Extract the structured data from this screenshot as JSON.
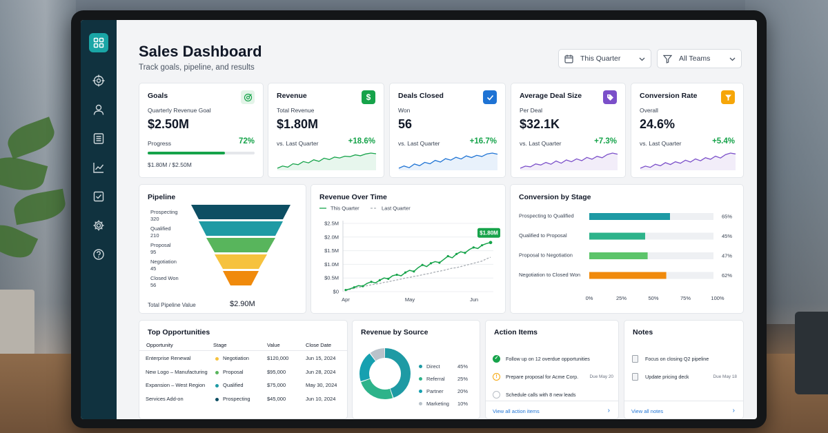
{
  "header": {
    "title": "Sales Dashboard",
    "subtitle": "Track goals, pipeline, and results",
    "period_select": {
      "value": "This Quarter",
      "icon": "calendar-icon"
    },
    "team_select": {
      "value": "All Teams",
      "icon": "filter-icon"
    }
  },
  "sidebar": {
    "items": [
      "grid-icon",
      "target-icon",
      "user-icon",
      "list-icon",
      "trend-icon",
      "check-square-icon",
      "gear-icon",
      "help-icon"
    ]
  },
  "kpis": {
    "goals": {
      "title": "Goals",
      "label": "Quarterly Revenue Goal",
      "value": "$2.50M",
      "progress_label": "Progress",
      "progress_pct": "72%",
      "progress_value": 0.72,
      "footer": "$1.80M / $2.50M",
      "icon": "target-check-icon",
      "color": "#16a34a"
    },
    "revenue": {
      "title": "Revenue",
      "label": "Total Revenue",
      "value": "$1.80M",
      "compare": "vs. Last Quarter",
      "change": "+18.6%",
      "icon": "dollar-icon",
      "color": "#16a34a",
      "spark": [
        3,
        4,
        3.5,
        5,
        4.6,
        6,
        5.4,
        6.8,
        6.1,
        7.5,
        6.9,
        8,
        7.6,
        8.4,
        8.2,
        9,
        8.6,
        9.4,
        9.8,
        9.5
      ]
    },
    "deals": {
      "title": "Deals Closed",
      "label": "Won",
      "value": "56",
      "compare": "vs. Last Quarter",
      "change": "+16.7%",
      "icon": "checkmark-icon",
      "color": "#1e73d4",
      "spark": [
        3,
        3.8,
        3.2,
        4.5,
        3.9,
        5.1,
        4.6,
        5.8,
        5.2,
        6.4,
        5.9,
        6.9,
        6.3,
        7.4,
        6.8,
        7.6,
        7.2,
        8.1,
        8.4,
        8
      ]
    },
    "avg_deal": {
      "title": "Average Deal Size",
      "label": "Per Deal",
      "value": "$32.1K",
      "compare": "vs. Last Quarter",
      "change": "+7.3%",
      "icon": "tag-icon",
      "color": "#7b4fc9",
      "spark": [
        3,
        3.6,
        3.4,
        4.2,
        3.9,
        4.6,
        4.1,
        5,
        4.4,
        5.3,
        4.8,
        5.6,
        5.1,
        6,
        5.5,
        6.3,
        5.9,
        6.8,
        7.2,
        6.9
      ]
    },
    "conversion": {
      "title": "Conversion Rate",
      "label": "Overall",
      "value": "24.6%",
      "compare": "vs. Last Quarter",
      "change": "+5.4%",
      "icon": "funnel-icon",
      "color": "#7b4fc9",
      "spark": [
        3,
        3.7,
        3.3,
        4.3,
        3.8,
        4.8,
        4.2,
        5.1,
        4.6,
        5.6,
        5,
        6,
        5.4,
        6.4,
        5.9,
        6.9,
        6.3,
        7.4,
        7.9,
        7.6
      ]
    }
  },
  "pipeline": {
    "title": "Pipeline",
    "stages": [
      {
        "name": "Prospecting",
        "count": "320",
        "color": "#0d4e63"
      },
      {
        "name": "Qualified",
        "count": "210",
        "color": "#1e9aa4"
      },
      {
        "name": "Proposal",
        "count": "95",
        "color": "#58b55c"
      },
      {
        "name": "Negotiation",
        "count": "45",
        "color": "#f6c23e"
      },
      {
        "name": "Closed Won",
        "count": "56",
        "color": "#f08a0c"
      }
    ],
    "total_label": "Total Pipeline Value",
    "total_value": "$2.90M"
  },
  "chart_data": {
    "type": "line",
    "title": "Revenue Over Time",
    "series": [
      {
        "name": "This Quarter",
        "color": "#16a34a",
        "style": "solid",
        "values": [
          0.06,
          0.1,
          0.16,
          0.22,
          0.2,
          0.3,
          0.36,
          0.32,
          0.42,
          0.5,
          0.47,
          0.58,
          0.62,
          0.58,
          0.7,
          0.78,
          0.74,
          0.88,
          0.98,
          0.92,
          1.04,
          1.1,
          1.06,
          1.18,
          1.3,
          1.24,
          1.38,
          1.46,
          1.42,
          1.54,
          1.62,
          1.58,
          1.7,
          1.76,
          1.8
        ]
      },
      {
        "name": "Last Quarter",
        "color": "#a8adb3",
        "style": "dashed",
        "values": [
          0.04,
          0.08,
          0.12,
          0.16,
          0.18,
          0.22,
          0.25,
          0.28,
          0.3,
          0.34,
          0.36,
          0.4,
          0.43,
          0.46,
          0.5,
          0.52,
          0.56,
          0.58,
          0.62,
          0.65,
          0.68,
          0.72,
          0.75,
          0.78,
          0.82,
          0.86,
          0.88,
          0.92,
          0.96,
          1,
          1.04,
          1.08,
          1.12,
          1.2,
          1.26
        ]
      }
    ],
    "yticks": [
      "$0",
      "$0.5M",
      "$1.0M",
      "$1.5M",
      "$2.0M",
      "$2.5M"
    ],
    "ylim": [
      0,
      2.5
    ],
    "xticks": [
      "Apr",
      "May",
      "Jun"
    ],
    "callout": "$1.80M",
    "grid": true,
    "legend": "top-left"
  },
  "conversion_stage": {
    "title": "Conversion by Stage",
    "rows": [
      {
        "label": "Prospecting to Qualified",
        "value": 65,
        "text": "65%",
        "color": "#1e9aa4"
      },
      {
        "label": "Qualified to Proposal",
        "value": 45,
        "text": "45%",
        "color": "#2db38a"
      },
      {
        "label": "Proposal to Negotiation",
        "value": 47,
        "text": "47%",
        "color": "#5cc46a"
      },
      {
        "label": "Negotiation to Closed Won",
        "value": 62,
        "text": "62%",
        "color": "#f08a0c"
      }
    ],
    "xticks": [
      "0%",
      "25%",
      "50%",
      "75%",
      "100%"
    ]
  },
  "opportunities": {
    "title": "Top Opportunities",
    "headers": [
      "Opportunity",
      "Stage",
      "Value",
      "Close Date"
    ],
    "rows": [
      {
        "name": "Enterprise Renewal",
        "stage": "Negotiation",
        "dot": "#f6c23e",
        "value": "$120,000",
        "date": "Jun 15, 2024"
      },
      {
        "name": "New Logo – Manufacturing",
        "stage": "Proposal",
        "dot": "#58b55c",
        "value": "$95,000",
        "date": "Jun 28, 2024"
      },
      {
        "name": "Expansion – West Region",
        "stage": "Qualified",
        "dot": "#1e9aa4",
        "value": "$75,000",
        "date": "May 30, 2024"
      },
      {
        "name": "Services Add-on",
        "stage": "Prospecting",
        "dot": "#0d4e63",
        "value": "$45,000",
        "date": "Jun 10, 2024"
      }
    ]
  },
  "source": {
    "title": "Revenue by Source",
    "items": [
      {
        "name": "Direct",
        "pct": "45%",
        "value": 45,
        "color": "#1e9aa4"
      },
      {
        "name": "Referral",
        "pct": "25%",
        "value": 25,
        "color": "#2db38a"
      },
      {
        "name": "Partner",
        "pct": "20%",
        "value": 20,
        "color": "#16a0b0"
      },
      {
        "name": "Marketing",
        "pct": "10%",
        "value": 10,
        "color": "#b9c2ca"
      }
    ]
  },
  "actions": {
    "title": "Action Items",
    "items": [
      {
        "text": "Follow up on 12 overdue opportunities",
        "due": "",
        "state": "done"
      },
      {
        "text": "Prepare proposal for Acme Corp.",
        "due": "Due May 20",
        "state": "warn"
      },
      {
        "text": "Schedule calls with 8 new leads",
        "due": "",
        "state": "todo"
      }
    ],
    "link": "View all action items"
  },
  "notes": {
    "title": "Notes",
    "items": [
      {
        "text": "Focus on closing Q2 pipeline",
        "due": ""
      },
      {
        "text": "Update pricing deck",
        "due": "Due May 18"
      }
    ],
    "link": "View all notes"
  }
}
